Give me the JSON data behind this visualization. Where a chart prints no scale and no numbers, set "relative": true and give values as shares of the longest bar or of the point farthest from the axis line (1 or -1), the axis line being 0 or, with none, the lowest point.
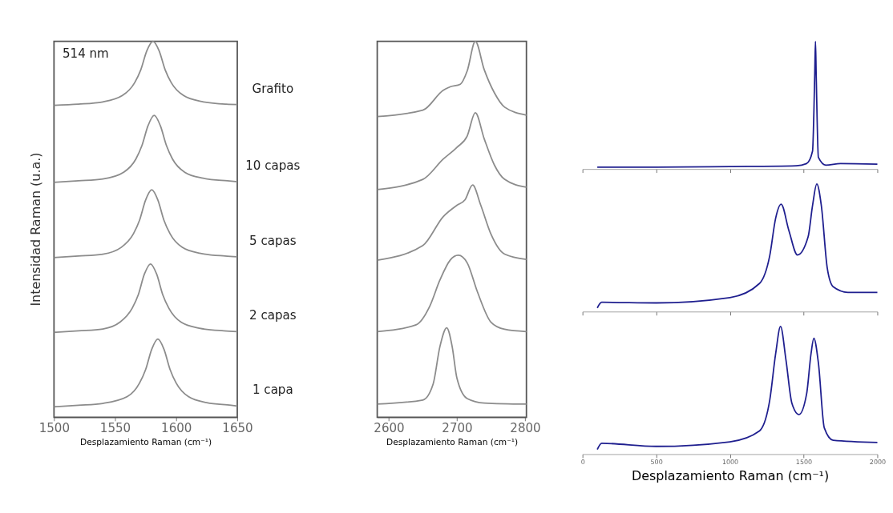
{
  "chart_data": [
    {
      "type": "line",
      "relative": true,
      "xlabel": "Desplazamiento Raman (cm⁻¹)",
      "ylabel": "Intensidad Raman (u.a.)",
      "annotations": [
        "514 nm"
      ],
      "xlim": [
        1500,
        1650
      ],
      "xticks": [
        1500,
        1550,
        1600,
        1650
      ],
      "grid": false,
      "marker": "none",
      "line_style": "solid",
      "series": [
        {
          "name": "Grafito",
          "color": "#8c8c8c",
          "x": [
            1500,
            1520,
            1540,
            1556,
            1566,
            1571,
            1576,
            1581,
            1586,
            1591,
            1596,
            1606,
            1621,
            1641,
            1650
          ],
          "values": [
            0.83,
            0.833,
            0.839,
            0.856,
            0.89,
            0.924,
            0.975,
            1.0,
            0.975,
            0.924,
            0.89,
            0.856,
            0.84,
            0.833,
            0.832
          ]
        },
        {
          "name": "10 capas",
          "color": "#8c8c8c",
          "x": [
            1500,
            1520,
            1540,
            1557,
            1567,
            1572,
            1577,
            1582,
            1587,
            1592,
            1597,
            1607,
            1622,
            1642,
            1650
          ],
          "values": [
            0.625,
            0.629,
            0.634,
            0.652,
            0.687,
            0.723,
            0.776,
            0.803,
            0.776,
            0.723,
            0.687,
            0.652,
            0.636,
            0.629,
            0.627
          ]
        },
        {
          "name": "5 capas",
          "color": "#8c8c8c",
          "x": [
            1500,
            1520,
            1540,
            1555,
            1565,
            1570,
            1575,
            1580,
            1585,
            1590,
            1595,
            1605,
            1620,
            1640,
            1650
          ],
          "values": [
            0.425,
            0.429,
            0.434,
            0.452,
            0.488,
            0.524,
            0.578,
            0.605,
            0.578,
            0.524,
            0.488,
            0.452,
            0.436,
            0.429,
            0.427
          ]
        },
        {
          "name": "2 capas",
          "color": "#8c8c8c",
          "x": [
            1500,
            1520,
            1540,
            1554,
            1564,
            1569,
            1574,
            1579,
            1584,
            1589,
            1594,
            1604,
            1619,
            1639,
            1650
          ],
          "values": [
            0.226,
            0.23,
            0.235,
            0.253,
            0.29,
            0.326,
            0.381,
            0.408,
            0.381,
            0.326,
            0.29,
            0.253,
            0.237,
            0.23,
            0.228
          ]
        },
        {
          "name": "1 capa",
          "color": "#8c8c8c",
          "x": [
            1500,
            1520,
            1540,
            1560,
            1570,
            1575,
            1580,
            1585,
            1590,
            1595,
            1600,
            1610,
            1625,
            1645,
            1650
          ],
          "values": [
            0.028,
            0.032,
            0.037,
            0.055,
            0.091,
            0.127,
            0.181,
            0.208,
            0.181,
            0.127,
            0.091,
            0.055,
            0.039,
            0.032,
            0.03
          ]
        }
      ]
    },
    {
      "type": "line",
      "relative": true,
      "xlabel": "Desplazamiento Raman (cm⁻¹)",
      "xlim": [
        2583,
        2802
      ],
      "xticks": [
        2600,
        2700,
        2800
      ],
      "grid": false,
      "marker": "none",
      "line_style": "solid",
      "series": [
        {
          "color": "#8c8c8c",
          "x": [
            2583,
            2650,
            2680,
            2690,
            2705,
            2715,
            2727,
            2740,
            2755,
            2770,
            2802
          ],
          "values": [
            0.8,
            0.817,
            0.87,
            0.879,
            0.886,
            0.921,
            1.0,
            0.925,
            0.863,
            0.825,
            0.804
          ]
        },
        {
          "color": "#8c8c8c",
          "x": [
            2583,
            2650,
            2680,
            2700,
            2715,
            2727,
            2740,
            2755,
            2770,
            2802
          ],
          "values": [
            0.606,
            0.633,
            0.687,
            0.718,
            0.748,
            0.81,
            0.741,
            0.671,
            0.633,
            0.612
          ]
        },
        {
          "color": "#8c8c8c",
          "x": [
            2583,
            2650,
            2680,
            2700,
            2712,
            2723,
            2735,
            2750,
            2770,
            2802
          ],
          "values": [
            0.418,
            0.457,
            0.534,
            0.564,
            0.579,
            0.618,
            0.564,
            0.487,
            0.434,
            0.42
          ]
        },
        {
          "color": "#8c8c8c",
          "x": [
            2583,
            2640,
            2660,
            2675,
            2690,
            2702,
            2715,
            2730,
            2750,
            2770,
            2802
          ],
          "values": [
            0.228,
            0.246,
            0.295,
            0.365,
            0.418,
            0.431,
            0.411,
            0.334,
            0.253,
            0.234,
            0.228
          ]
        },
        {
          "color": "#8c8c8c",
          "x": [
            2583,
            2650,
            2665,
            2675,
            2685,
            2693,
            2700,
            2715,
            2740,
            2802
          ],
          "values": [
            0.035,
            0.046,
            0.088,
            0.188,
            0.238,
            0.188,
            0.104,
            0.05,
            0.038,
            0.035
          ]
        }
      ]
    },
    {
      "type": "line",
      "relative": true,
      "xlim": [
        0,
        2000
      ],
      "xticks": [
        0,
        500,
        1000,
        1500,
        2000
      ],
      "tick_labels": false,
      "grid": false,
      "marker": "none",
      "line_style": "solid",
      "series": [
        {
          "color": "#1f1f8f",
          "x": [
            100,
            500,
            1000,
            1450,
            1520,
            1560,
            1575,
            1580,
            1585,
            1600,
            1650,
            1750,
            2000
          ],
          "values": [
            0.014,
            0.014,
            0.019,
            0.026,
            0.043,
            0.139,
            0.737,
            1.0,
            0.737,
            0.091,
            0.031,
            0.043,
            0.038
          ]
        }
      ]
    },
    {
      "type": "line",
      "relative": true,
      "xlim": [
        0,
        2000
      ],
      "xticks": [
        0,
        500,
        1000,
        1500,
        2000
      ],
      "tick_labels": false,
      "grid": false,
      "marker": "none",
      "line_style": "solid",
      "series": [
        {
          "color": "#1f1f8f",
          "x": [
            100,
            130,
            500,
            1000,
            1200,
            1270,
            1310,
            1347,
            1400,
            1458,
            1530,
            1560,
            1589,
            1620,
            1660,
            1700,
            1800,
            2000
          ],
          "values": [
            0.029,
            0.073,
            0.068,
            0.11,
            0.22,
            0.439,
            0.732,
            0.841,
            0.634,
            0.444,
            0.585,
            0.829,
            1.0,
            0.829,
            0.341,
            0.195,
            0.151,
            0.151
          ]
        }
      ]
    },
    {
      "type": "line",
      "relative": true,
      "xlabel": "Desplazamiento Raman (cm⁻¹)",
      "xlim": [
        0,
        2000
      ],
      "xticks": [
        0,
        500,
        1000,
        1500,
        2000
      ],
      "tick_labels": "x",
      "grid": false,
      "marker": "none",
      "line_style": "solid",
      "series": [
        {
          "color": "#1f1f8f",
          "x": [
            100,
            130,
            500,
            1000,
            1200,
            1270,
            1310,
            1343,
            1380,
            1420,
            1468,
            1520,
            1550,
            1569,
            1600,
            1640,
            1700,
            2000
          ],
          "values": [
            0.036,
            0.085,
            0.061,
            0.097,
            0.182,
            0.424,
            0.787,
            1.0,
            0.738,
            0.4,
            0.31,
            0.472,
            0.787,
            0.908,
            0.714,
            0.206,
            0.109,
            0.092
          ]
        }
      ]
    }
  ]
}
